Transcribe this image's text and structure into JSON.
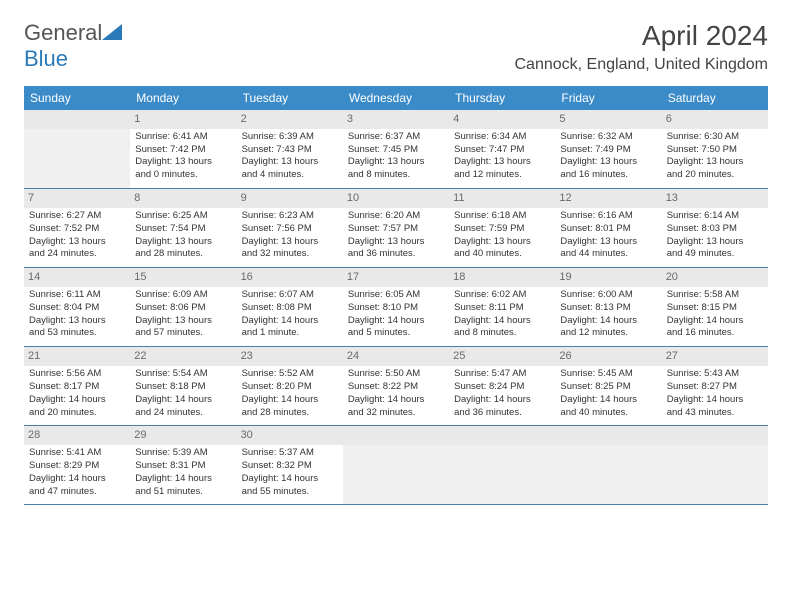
{
  "brand": {
    "word1": "General",
    "word2": "Blue"
  },
  "title": "April 2024",
  "location": "Cannock, England, United Kingdom",
  "colors": {
    "header_bg": "#3b8bc9",
    "header_text": "#ffffff",
    "daynum_bg": "#e9e9e9",
    "daynum_text": "#6a6a6a",
    "cell_border": "#4a7fa8",
    "empty_bg": "#f0f0f0",
    "brand_gray": "#555555",
    "brand_blue": "#2a7ab9",
    "title_color": "#444444",
    "body_text": "#333333"
  },
  "weekdays": [
    "Sunday",
    "Monday",
    "Tuesday",
    "Wednesday",
    "Thursday",
    "Friday",
    "Saturday"
  ],
  "layout": {
    "first_weekday_index": 1,
    "days_in_month": 30,
    "rows": 5,
    "cols": 7
  },
  "days": {
    "1": {
      "sunrise": "Sunrise: 6:41 AM",
      "sunset": "Sunset: 7:42 PM",
      "d1": "Daylight: 13 hours",
      "d2": "and 0 minutes."
    },
    "2": {
      "sunrise": "Sunrise: 6:39 AM",
      "sunset": "Sunset: 7:43 PM",
      "d1": "Daylight: 13 hours",
      "d2": "and 4 minutes."
    },
    "3": {
      "sunrise": "Sunrise: 6:37 AM",
      "sunset": "Sunset: 7:45 PM",
      "d1": "Daylight: 13 hours",
      "d2": "and 8 minutes."
    },
    "4": {
      "sunrise": "Sunrise: 6:34 AM",
      "sunset": "Sunset: 7:47 PM",
      "d1": "Daylight: 13 hours",
      "d2": "and 12 minutes."
    },
    "5": {
      "sunrise": "Sunrise: 6:32 AM",
      "sunset": "Sunset: 7:49 PM",
      "d1": "Daylight: 13 hours",
      "d2": "and 16 minutes."
    },
    "6": {
      "sunrise": "Sunrise: 6:30 AM",
      "sunset": "Sunset: 7:50 PM",
      "d1": "Daylight: 13 hours",
      "d2": "and 20 minutes."
    },
    "7": {
      "sunrise": "Sunrise: 6:27 AM",
      "sunset": "Sunset: 7:52 PM",
      "d1": "Daylight: 13 hours",
      "d2": "and 24 minutes."
    },
    "8": {
      "sunrise": "Sunrise: 6:25 AM",
      "sunset": "Sunset: 7:54 PM",
      "d1": "Daylight: 13 hours",
      "d2": "and 28 minutes."
    },
    "9": {
      "sunrise": "Sunrise: 6:23 AM",
      "sunset": "Sunset: 7:56 PM",
      "d1": "Daylight: 13 hours",
      "d2": "and 32 minutes."
    },
    "10": {
      "sunrise": "Sunrise: 6:20 AM",
      "sunset": "Sunset: 7:57 PM",
      "d1": "Daylight: 13 hours",
      "d2": "and 36 minutes."
    },
    "11": {
      "sunrise": "Sunrise: 6:18 AM",
      "sunset": "Sunset: 7:59 PM",
      "d1": "Daylight: 13 hours",
      "d2": "and 40 minutes."
    },
    "12": {
      "sunrise": "Sunrise: 6:16 AM",
      "sunset": "Sunset: 8:01 PM",
      "d1": "Daylight: 13 hours",
      "d2": "and 44 minutes."
    },
    "13": {
      "sunrise": "Sunrise: 6:14 AM",
      "sunset": "Sunset: 8:03 PM",
      "d1": "Daylight: 13 hours",
      "d2": "and 49 minutes."
    },
    "14": {
      "sunrise": "Sunrise: 6:11 AM",
      "sunset": "Sunset: 8:04 PM",
      "d1": "Daylight: 13 hours",
      "d2": "and 53 minutes."
    },
    "15": {
      "sunrise": "Sunrise: 6:09 AM",
      "sunset": "Sunset: 8:06 PM",
      "d1": "Daylight: 13 hours",
      "d2": "and 57 minutes."
    },
    "16": {
      "sunrise": "Sunrise: 6:07 AM",
      "sunset": "Sunset: 8:08 PM",
      "d1": "Daylight: 14 hours",
      "d2": "and 1 minute."
    },
    "17": {
      "sunrise": "Sunrise: 6:05 AM",
      "sunset": "Sunset: 8:10 PM",
      "d1": "Daylight: 14 hours",
      "d2": "and 5 minutes."
    },
    "18": {
      "sunrise": "Sunrise: 6:02 AM",
      "sunset": "Sunset: 8:11 PM",
      "d1": "Daylight: 14 hours",
      "d2": "and 8 minutes."
    },
    "19": {
      "sunrise": "Sunrise: 6:00 AM",
      "sunset": "Sunset: 8:13 PM",
      "d1": "Daylight: 14 hours",
      "d2": "and 12 minutes."
    },
    "20": {
      "sunrise": "Sunrise: 5:58 AM",
      "sunset": "Sunset: 8:15 PM",
      "d1": "Daylight: 14 hours",
      "d2": "and 16 minutes."
    },
    "21": {
      "sunrise": "Sunrise: 5:56 AM",
      "sunset": "Sunset: 8:17 PM",
      "d1": "Daylight: 14 hours",
      "d2": "and 20 minutes."
    },
    "22": {
      "sunrise": "Sunrise: 5:54 AM",
      "sunset": "Sunset: 8:18 PM",
      "d1": "Daylight: 14 hours",
      "d2": "and 24 minutes."
    },
    "23": {
      "sunrise": "Sunrise: 5:52 AM",
      "sunset": "Sunset: 8:20 PM",
      "d1": "Daylight: 14 hours",
      "d2": "and 28 minutes."
    },
    "24": {
      "sunrise": "Sunrise: 5:50 AM",
      "sunset": "Sunset: 8:22 PM",
      "d1": "Daylight: 14 hours",
      "d2": "and 32 minutes."
    },
    "25": {
      "sunrise": "Sunrise: 5:47 AM",
      "sunset": "Sunset: 8:24 PM",
      "d1": "Daylight: 14 hours",
      "d2": "and 36 minutes."
    },
    "26": {
      "sunrise": "Sunrise: 5:45 AM",
      "sunset": "Sunset: 8:25 PM",
      "d1": "Daylight: 14 hours",
      "d2": "and 40 minutes."
    },
    "27": {
      "sunrise": "Sunrise: 5:43 AM",
      "sunset": "Sunset: 8:27 PM",
      "d1": "Daylight: 14 hours",
      "d2": "and 43 minutes."
    },
    "28": {
      "sunrise": "Sunrise: 5:41 AM",
      "sunset": "Sunset: 8:29 PM",
      "d1": "Daylight: 14 hours",
      "d2": "and 47 minutes."
    },
    "29": {
      "sunrise": "Sunrise: 5:39 AM",
      "sunset": "Sunset: 8:31 PM",
      "d1": "Daylight: 14 hours",
      "d2": "and 51 minutes."
    },
    "30": {
      "sunrise": "Sunrise: 5:37 AM",
      "sunset": "Sunset: 8:32 PM",
      "d1": "Daylight: 14 hours",
      "d2": "and 55 minutes."
    }
  }
}
